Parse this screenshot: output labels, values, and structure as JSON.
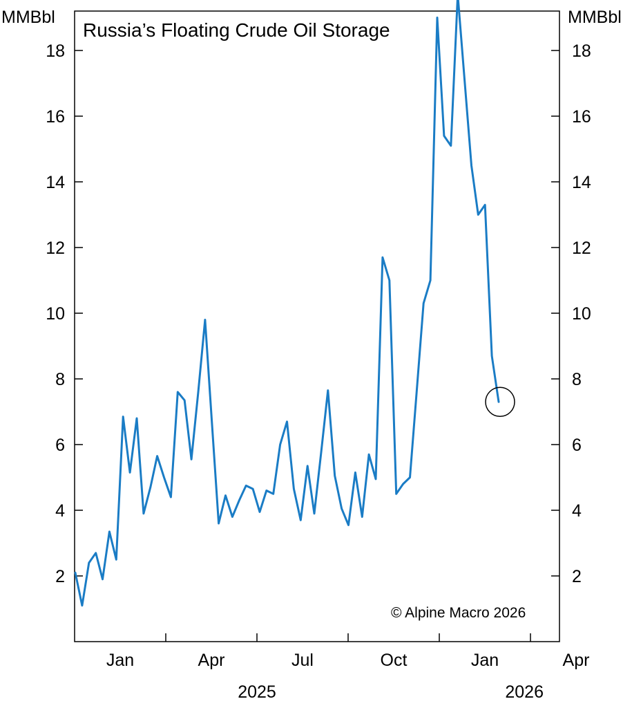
{
  "chart_data": {
    "type": "line",
    "title": "Russia’s Floating Crude Oil Storage",
    "credit": "© Alpine Macro 2026",
    "unit_left": "MMBbl",
    "unit_right": "MMBbl",
    "ylim": [
      0,
      19.2
    ],
    "y_ticks": [
      2,
      4,
      6,
      8,
      10,
      12,
      14,
      16,
      18
    ],
    "x_month_ticks": [
      "Jan",
      "Apr",
      "Jul",
      "Oct",
      "Jan",
      "Apr"
    ],
    "x_year_labels": [
      "2025",
      "2026"
    ],
    "line_color": "#1a7cc5",
    "grid": false,
    "series": [
      {
        "values": [
          2.1,
          1.1,
          2.4,
          2.7,
          1.9,
          3.35,
          2.5,
          6.85,
          5.15,
          6.8,
          3.9,
          4.7,
          5.65,
          5.0,
          4.4,
          7.6,
          7.35,
          5.55,
          7.6,
          9.8,
          6.7,
          3.6,
          4.45,
          3.8,
          4.3,
          4.75,
          4.65,
          3.95,
          4.6,
          4.5,
          6.0,
          6.7,
          4.65,
          3.7,
          5.35,
          3.9,
          5.75,
          7.65,
          5.05,
          4.05,
          3.55,
          5.15,
          3.8,
          5.7,
          4.95,
          11.7,
          11.0,
          4.5,
          4.8,
          5.0,
          7.65,
          10.3,
          11.0,
          19.0,
          15.4,
          15.1,
          19.7,
          17.1,
          14.5,
          13.0,
          13.3,
          8.7,
          7.3
        ]
      }
    ],
    "annotations": [
      {
        "type": "circle",
        "note": "latest value highlighted",
        "value": 7.3
      }
    ]
  }
}
